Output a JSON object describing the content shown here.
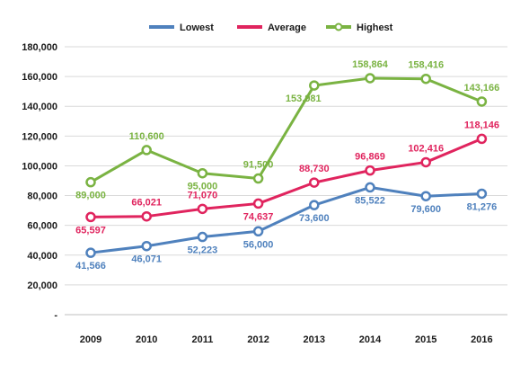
{
  "chart_data": {
    "type": "line",
    "title": "",
    "xlabel": "",
    "ylabel": "",
    "categories": [
      "2009",
      "2010",
      "2011",
      "2012",
      "2013",
      "2014",
      "2015",
      "2016"
    ],
    "ylim": [
      0,
      180000
    ],
    "yticks": [
      0,
      20000,
      40000,
      60000,
      80000,
      100000,
      120000,
      140000,
      160000,
      180000
    ],
    "ytick_labels": [
      "-",
      "20,000",
      "40,000",
      "60,000",
      "80,000",
      "100,000",
      "120,000",
      "140,000",
      "160,000",
      "180,000"
    ],
    "grid": true,
    "legend_position": "top-center",
    "series": [
      {
        "name": "Lowest",
        "color": "#4f81bd",
        "values": [
          41566,
          46071,
          52223,
          56000,
          73600,
          85522,
          79600,
          81276
        ],
        "labels": [
          "41,566",
          "46,071",
          "52,223",
          "56,000",
          "73,600",
          "85,522",
          "79,600",
          "81,276"
        ]
      },
      {
        "name": "Average",
        "color": "#e0245e",
        "values": [
          65597,
          66021,
          71070,
          74637,
          88730,
          96869,
          102416,
          118146
        ],
        "labels": [
          "65,597",
          "66,021",
          "71,070",
          "74,637",
          "88,730",
          "96,869",
          "102,416",
          "118,146"
        ]
      },
      {
        "name": "Highest",
        "color": "#7ab342",
        "values": [
          89000,
          110600,
          95000,
          91500,
          153981,
          158864,
          158416,
          143166
        ],
        "labels": [
          "89,000",
          "110,600",
          "95,000",
          "91,500",
          "153,981",
          "158,864",
          "158,416",
          "143,166"
        ]
      }
    ]
  }
}
